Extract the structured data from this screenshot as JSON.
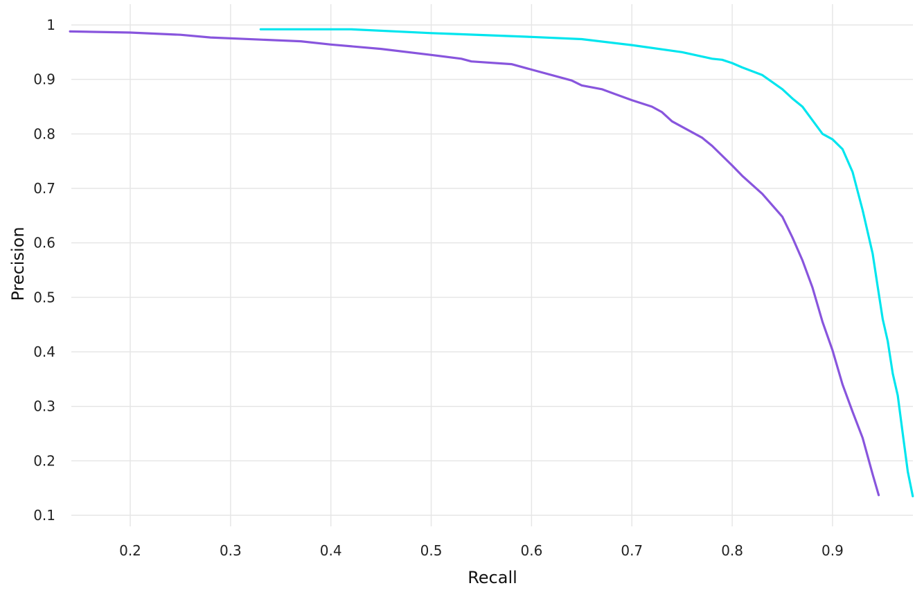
{
  "chart_data": {
    "type": "line",
    "title": "",
    "xlabel": "Recall",
    "ylabel": "Precision",
    "xlim": [
      0.14,
      0.98
    ],
    "ylim": [
      0.09,
      1.03
    ],
    "grid": true,
    "x_ticks": [
      {
        "value": 0.2,
        "label": "0.2"
      },
      {
        "value": 0.3,
        "label": "0.3"
      },
      {
        "value": 0.4,
        "label": "0.4"
      },
      {
        "value": 0.5,
        "label": "0.5"
      },
      {
        "value": 0.6,
        "label": "0.6"
      },
      {
        "value": 0.7,
        "label": "0.7"
      },
      {
        "value": 0.8,
        "label": "0.8"
      },
      {
        "value": 0.9,
        "label": "0.9"
      }
    ],
    "y_ticks": [
      {
        "value": 0.1,
        "label": "0.1"
      },
      {
        "value": 0.2,
        "label": "0.2"
      },
      {
        "value": 0.3,
        "label": "0.3"
      },
      {
        "value": 0.4,
        "label": "0.4"
      },
      {
        "value": 0.5,
        "label": "0.5"
      },
      {
        "value": 0.6,
        "label": "0.6"
      },
      {
        "value": 0.7,
        "label": "0.7"
      },
      {
        "value": 0.8,
        "label": "0.8"
      },
      {
        "value": 0.9,
        "label": "0.9"
      },
      {
        "value": 1.0,
        "label": "1"
      }
    ],
    "series": [
      {
        "name": "purple-curve",
        "color": "#8855dd",
        "points": [
          [
            0.14,
            0.988
          ],
          [
            0.2,
            0.986
          ],
          [
            0.25,
            0.982
          ],
          [
            0.28,
            0.977
          ],
          [
            0.33,
            0.973
          ],
          [
            0.37,
            0.97
          ],
          [
            0.4,
            0.964
          ],
          [
            0.45,
            0.956
          ],
          [
            0.5,
            0.945
          ],
          [
            0.53,
            0.938
          ],
          [
            0.54,
            0.933
          ],
          [
            0.58,
            0.928
          ],
          [
            0.6,
            0.918
          ],
          [
            0.64,
            0.898
          ],
          [
            0.65,
            0.889
          ],
          [
            0.67,
            0.882
          ],
          [
            0.7,
            0.862
          ],
          [
            0.72,
            0.85
          ],
          [
            0.73,
            0.84
          ],
          [
            0.74,
            0.823
          ],
          [
            0.77,
            0.793
          ],
          [
            0.78,
            0.778
          ],
          [
            0.8,
            0.742
          ],
          [
            0.81,
            0.723
          ],
          [
            0.83,
            0.69
          ],
          [
            0.85,
            0.648
          ],
          [
            0.86,
            0.61
          ],
          [
            0.87,
            0.568
          ],
          [
            0.88,
            0.518
          ],
          [
            0.89,
            0.455
          ],
          [
            0.9,
            0.403
          ],
          [
            0.91,
            0.34
          ],
          [
            0.92,
            0.29
          ],
          [
            0.93,
            0.242
          ],
          [
            0.94,
            0.175
          ],
          [
            0.946,
            0.137
          ]
        ]
      },
      {
        "name": "cyan-curve",
        "color": "#00e5ee",
        "points": [
          [
            0.33,
            0.992
          ],
          [
            0.42,
            0.992
          ],
          [
            0.5,
            0.985
          ],
          [
            0.6,
            0.978
          ],
          [
            0.65,
            0.974
          ],
          [
            0.7,
            0.963
          ],
          [
            0.75,
            0.95
          ],
          [
            0.78,
            0.938
          ],
          [
            0.79,
            0.936
          ],
          [
            0.8,
            0.93
          ],
          [
            0.81,
            0.922
          ],
          [
            0.83,
            0.908
          ],
          [
            0.84,
            0.895
          ],
          [
            0.85,
            0.882
          ],
          [
            0.86,
            0.865
          ],
          [
            0.87,
            0.85
          ],
          [
            0.88,
            0.825
          ],
          [
            0.89,
            0.8
          ],
          [
            0.9,
            0.79
          ],
          [
            0.91,
            0.772
          ],
          [
            0.92,
            0.73
          ],
          [
            0.93,
            0.66
          ],
          [
            0.94,
            0.58
          ],
          [
            0.945,
            0.52
          ],
          [
            0.95,
            0.46
          ],
          [
            0.955,
            0.42
          ],
          [
            0.96,
            0.36
          ],
          [
            0.965,
            0.32
          ],
          [
            0.97,
            0.25
          ],
          [
            0.975,
            0.18
          ],
          [
            0.98,
            0.135
          ]
        ]
      }
    ]
  }
}
